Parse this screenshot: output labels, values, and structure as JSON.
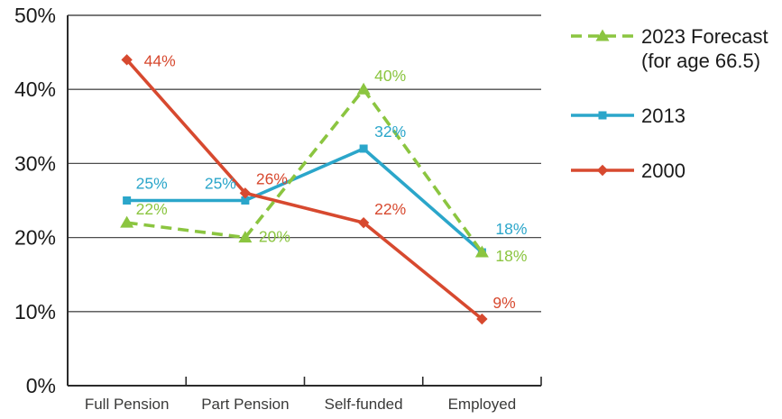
{
  "chart_data": {
    "type": "line",
    "title": "",
    "xlabel": "",
    "ylabel": "",
    "categories": [
      "Full Pension",
      "Part Pension",
      "Self-funded",
      "Employed"
    ],
    "series": [
      {
        "name": "2023 Forecast (for age 66.5)",
        "legend_lines": [
          "2023 Forecast",
          "(for age 66.5)"
        ],
        "values": [
          22,
          20,
          40,
          18
        ],
        "point_labels": [
          "22%",
          "20%",
          "40%",
          "18%"
        ],
        "color": "#8BC540",
        "line_style": "dashed",
        "marker": "triangle"
      },
      {
        "name": "2013",
        "legend_lines": [
          "2013"
        ],
        "values": [
          25,
          25,
          32,
          18
        ],
        "point_labels": [
          "25%",
          "25%",
          "32%",
          "18%"
        ],
        "color": "#2BA6CA",
        "line_style": "solid",
        "marker": "square"
      },
      {
        "name": "2000",
        "legend_lines": [
          "2000"
        ],
        "values": [
          44,
          26,
          22,
          9
        ],
        "point_labels": [
          "44%",
          "26%",
          "22%",
          "9%"
        ],
        "color": "#D7492F",
        "line_style": "solid",
        "marker": "diamond"
      }
    ],
    "ylim": [
      0,
      50
    ],
    "ytick_step": 10,
    "ytick_labels": [
      "0%",
      "10%",
      "20%",
      "30%",
      "40%",
      "50%"
    ],
    "grid": true,
    "legend_position": "right"
  },
  "colors": {
    "axis": "#2b2b2b",
    "grid": "#4d4d4d",
    "tick": "#2b2b2b"
  }
}
